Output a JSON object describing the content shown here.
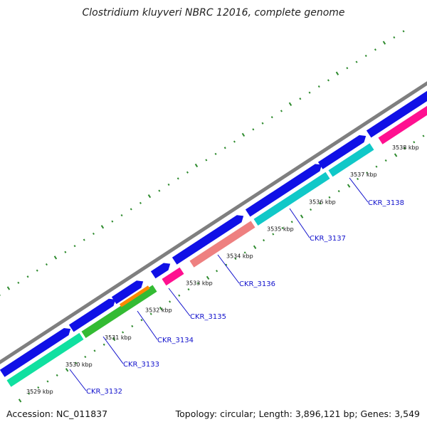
{
  "title": "Clostridium kluyveri NBRC 12016, complete genome",
  "footer": {
    "accession": "Accession: NC_011837",
    "summary": "Topology: circular; Length: 3,896,121 bp; Genes: 3,549"
  },
  "colors": {
    "backbone": "#7f7f7f",
    "cds": "#1010e6",
    "gc_skew_ticks": "#2e8b2e",
    "gene_label": "#1010cc",
    "aqua": "#10e0a0",
    "green": "#33bb33",
    "orange": "#ff8800",
    "magenta": "#ff1090",
    "salmon": "#ee8080",
    "cyan": "#10c8c8"
  },
  "scale_labels": [
    "3529 kbp",
    "3530 kbp",
    "3531 kbp",
    "3532 kbp",
    "3533 kbp",
    "3534 kbp",
    "3535 kbp",
    "3536 kbp",
    "3537 kbp",
    "3538 kbp"
  ],
  "gene_labels": [
    "CKR_3132",
    "CKR_3133",
    "CKR_3134",
    "CKR_3135",
    "CKR_3136",
    "CKR_3137",
    "CKR_3138"
  ]
}
